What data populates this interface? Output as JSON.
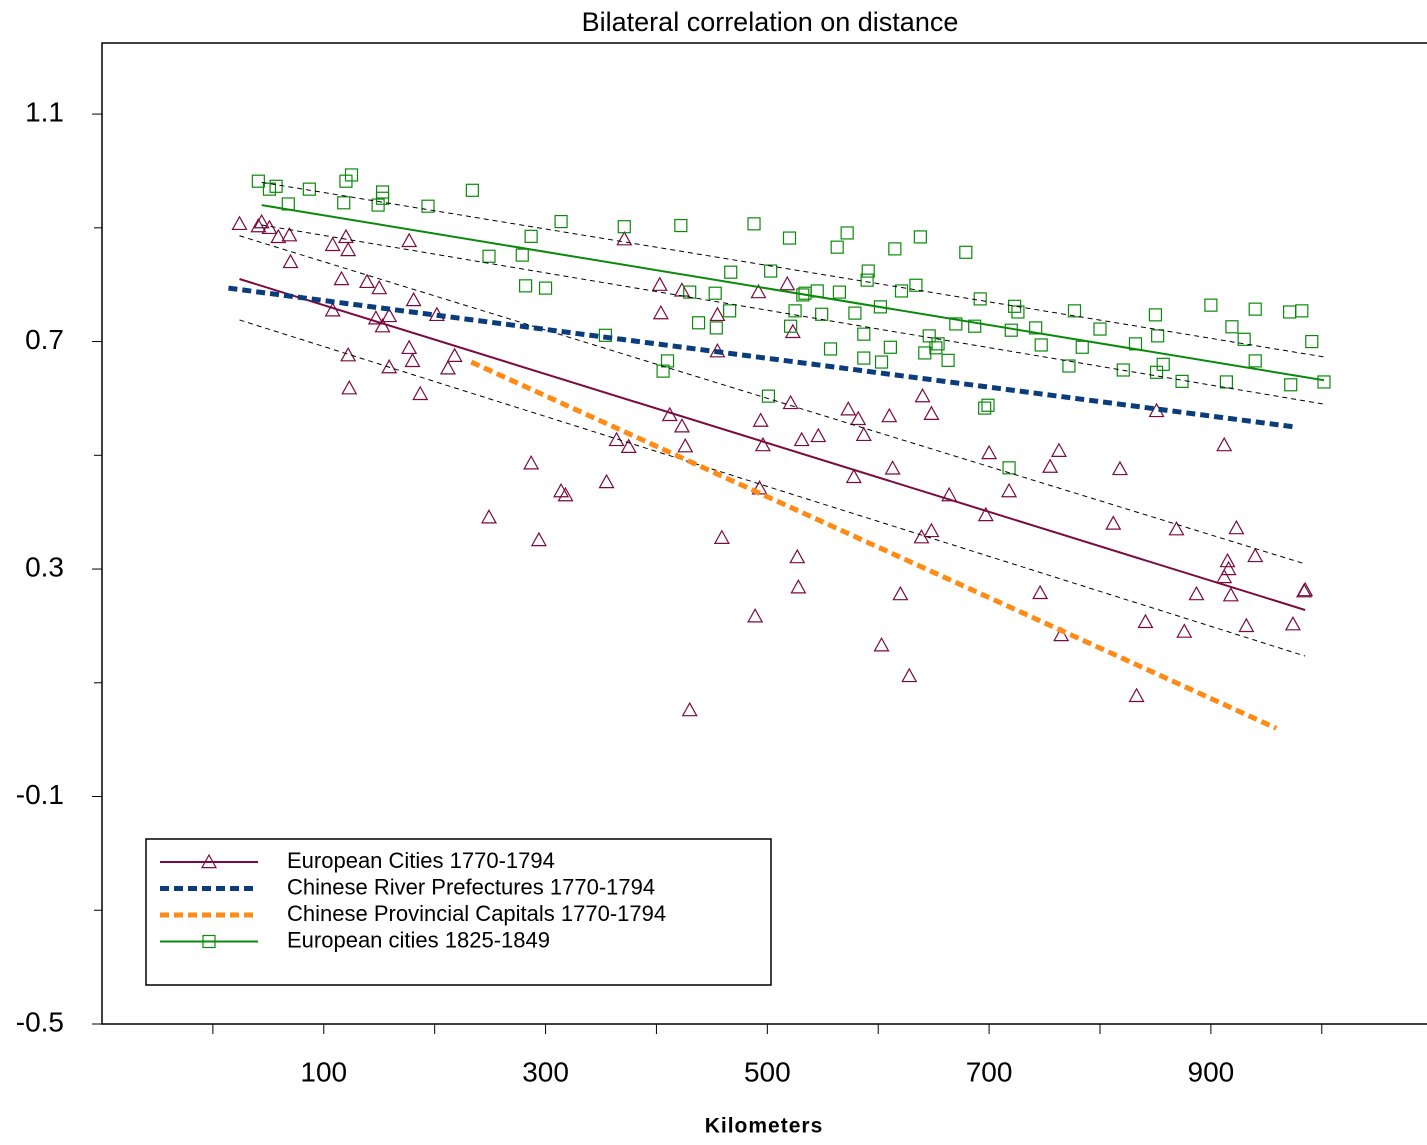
{
  "chart_data": {
    "type": "scatter",
    "title": "Bilateral correlation on distance",
    "x_label": "Kilometers",
    "xlim": [
      -100,
      1094
    ],
    "ylim": [
      -0.5,
      1.225
    ],
    "xticks": [
      100,
      300,
      500,
      700,
      900
    ],
    "xminor_ticks": [
      0,
      200,
      400,
      600,
      800,
      1000
    ],
    "yticks": [
      -0.5,
      -0.1,
      0.3,
      0.7,
      1.1
    ],
    "yminor_ticks": [
      -0.3,
      0.1,
      0.5,
      0.9
    ],
    "legend": "lower left",
    "series": [
      {
        "name": "European Cities 1770-1794",
        "color": "#7a0a3f",
        "marker": "triangle",
        "line_style": "solid",
        "x": [
          24,
          41,
          44,
          51,
          59,
          69,
          70,
          108,
          120,
          122,
          108,
          116,
          122,
          123,
          139,
          147,
          150,
          153,
          159,
          159,
          177,
          181,
          177,
          180,
          187,
          202,
          212,
          218,
          249,
          287,
          294,
          314,
          318,
          355,
          364,
          371,
          375,
          403,
          404,
          412,
          423,
          423,
          426,
          430,
          455,
          455,
          459,
          489,
          492,
          493,
          494,
          496,
          518,
          521,
          523,
          527,
          528,
          531,
          546,
          573,
          578,
          582,
          587,
          603,
          610,
          613,
          620,
          628,
          639,
          640,
          648,
          648,
          664,
          697,
          700,
          718,
          746,
          755,
          763,
          765,
          812,
          818,
          833,
          841,
          851,
          869,
          876,
          887,
          912,
          912,
          915,
          916,
          918,
          923,
          932,
          940,
          974,
          984,
          985
        ],
        "values": [
          0.907,
          0.903,
          0.91,
          0.9,
          0.884,
          0.887,
          0.84,
          0.87,
          0.884,
          0.861,
          0.755,
          0.81,
          0.676,
          0.618,
          0.805,
          0.741,
          0.794,
          0.727,
          0.655,
          0.745,
          0.877,
          0.773,
          0.689,
          0.666,
          0.608,
          0.747,
          0.653,
          0.675,
          0.391,
          0.486,
          0.351,
          0.437,
          0.43,
          0.453,
          0.527,
          0.88,
          0.515,
          0.8,
          0.75,
          0.571,
          0.79,
          0.551,
          0.516,
          0.052,
          0.747,
          0.683,
          0.355,
          0.217,
          0.787,
          0.442,
          0.561,
          0.518,
          0.801,
          0.592,
          0.717,
          0.321,
          0.268,
          0.527,
          0.534,
          0.581,
          0.462,
          0.564,
          0.536,
          0.166,
          0.569,
          0.477,
          0.256,
          0.112,
          0.356,
          0.604,
          0.367,
          0.573,
          0.43,
          0.395,
          0.504,
          0.437,
          0.258,
          0.48,
          0.508,
          0.184,
          0.38,
          0.476,
          0.077,
          0.207,
          0.578,
          0.37,
          0.19,
          0.256,
          0.518,
          0.286,
          0.314,
          0.3,
          0.254,
          0.372,
          0.2,
          0.323,
          0.203,
          0.261,
          0.263
        ],
        "fit_x": [
          24,
          985
        ],
        "fit_values": [
          0.81,
          0.228
        ],
        "band_x": [
          24,
          985
        ],
        "band_upper": [
          0.886,
          0.309
        ],
        "band_lower": [
          0.738,
          0.147
        ]
      },
      {
        "name": "Chinese River Prefectures 1770-1794",
        "color": "#0b3d7c",
        "line_style": "dash",
        "fit_x": [
          14,
          975
        ],
        "fit_values": [
          0.794,
          0.55
        ]
      },
      {
        "name": "Chinese Provincial Capitals 1770-1794",
        "color": "#ff8a14",
        "line_style": "dash",
        "fit_x": [
          233,
          959
        ],
        "fit_values": [
          0.664,
          0.02
        ]
      },
      {
        "name": "European cities 1825-1849",
        "color": "#0a8a0a",
        "marker": "square",
        "line_style": "solid",
        "x": [
          41,
          51,
          57,
          68,
          87,
          118,
          120,
          125,
          149,
          153,
          153,
          194,
          234,
          249,
          279,
          282,
          287,
          300,
          314,
          354,
          371,
          406,
          410,
          422,
          430,
          438,
          453,
          454,
          466,
          467,
          488,
          501,
          503,
          520,
          521,
          525,
          532,
          534,
          545,
          549,
          557,
          563,
          565,
          572,
          579,
          587,
          587,
          591,
          590,
          602,
          603,
          611,
          615,
          621,
          634,
          638,
          642,
          646,
          652,
          654,
          663,
          670,
          679,
          687,
          692,
          696,
          699,
          718,
          720,
          723,
          726,
          742,
          747,
          772,
          777,
          784,
          800,
          821,
          832,
          850,
          851,
          852,
          857,
          874,
          900,
          914,
          919,
          930,
          940,
          940,
          971,
          982,
          972,
          991,
          1002
        ],
        "values": [
          0.982,
          0.968,
          0.973,
          0.942,
          0.968,
          0.944,
          0.982,
          0.993,
          0.94,
          0.952,
          0.963,
          0.938,
          0.966,
          0.85,
          0.852,
          0.798,
          0.885,
          0.794,
          0.911,
          0.711,
          0.902,
          0.648,
          0.666,
          0.904,
          0.787,
          0.733,
          0.785,
          0.724,
          0.754,
          0.822,
          0.907,
          0.604,
          0.824,
          0.882,
          0.727,
          0.754,
          0.782,
          0.785,
          0.789,
          0.748,
          0.687,
          0.866,
          0.787,
          0.891,
          0.75,
          0.713,
          0.671,
          0.824,
          0.808,
          0.761,
          0.664,
          0.69,
          0.863,
          0.789,
          0.799,
          0.884,
          0.68,
          0.71,
          0.689,
          0.696,
          0.667,
          0.731,
          0.857,
          0.727,
          0.775,
          0.583,
          0.588,
          0.478,
          0.72,
          0.762,
          0.752,
          0.724,
          0.694,
          0.657,
          0.754,
          0.69,
          0.722,
          0.65,
          0.696,
          0.747,
          0.646,
          0.71,
          0.66,
          0.63,
          0.764,
          0.629,
          0.726,
          0.704,
          0.757,
          0.666,
          0.752,
          0.754,
          0.624,
          0.7,
          0.629
        ],
        "fit_x": [
          44,
          1002
        ],
        "fit_values": [
          0.94,
          0.632
        ],
        "band_x": [
          44,
          1002
        ],
        "band_upper": [
          0.98,
          0.673
        ],
        "band_lower": [
          0.905,
          0.59
        ]
      }
    ]
  }
}
